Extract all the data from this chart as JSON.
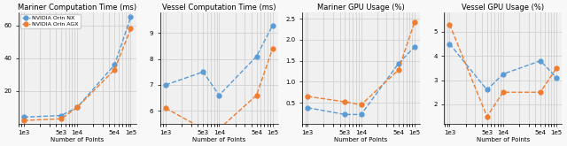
{
  "x_ticks": [
    1000,
    5000,
    10000,
    50000,
    100000
  ],
  "x_tick_labels": [
    "1e3",
    "5e3",
    "1e4",
    "5e4",
    "1e5"
  ],
  "xlabel": "Number of Points",
  "color_nx": "#5b9bd5",
  "color_agx": "#ed7d31",
  "legend_labels": [
    "NVIDIA Orin NX",
    "NVIDIA Orin AGX"
  ],
  "plots": [
    {
      "title": "Mariner Computation Time (ms)",
      "nx": [
        4.0,
        5.0,
        10.0,
        36.0,
        65.0
      ],
      "agx": [
        2.0,
        3.0,
        10.0,
        33.0,
        58.0
      ],
      "ylim": [
        0,
        68
      ],
      "yticks": [
        20,
        40,
        60
      ]
    },
    {
      "title": "Vessel Computation Time (ms)",
      "nx": [
        7.0,
        7.5,
        6.6,
        8.1,
        9.3
      ],
      "agx": [
        6.1,
        5.3,
        5.3,
        6.6,
        8.4
      ],
      "ylim": [
        5.5,
        9.8
      ],
      "yticks": [
        6,
        7,
        8,
        9
      ]
    },
    {
      "title": "Mariner GPU Usage (%)",
      "nx": [
        0.38,
        0.22,
        0.22,
        1.43,
        1.83
      ],
      "agx": [
        0.65,
        0.52,
        0.45,
        1.28,
        2.42
      ],
      "ylim": [
        0.0,
        2.65
      ],
      "yticks": [
        0.5,
        1.0,
        1.5,
        2.0,
        2.5
      ]
    },
    {
      "title": "Vessel GPU Usage (%)",
      "nx": [
        4.5,
        2.6,
        3.25,
        3.8,
        3.1
      ],
      "agx": [
        5.3,
        1.5,
        2.5,
        2.5,
        3.5
      ],
      "ylim": [
        1.2,
        5.8
      ],
      "yticks": [
        2,
        3,
        4,
        5
      ]
    }
  ]
}
